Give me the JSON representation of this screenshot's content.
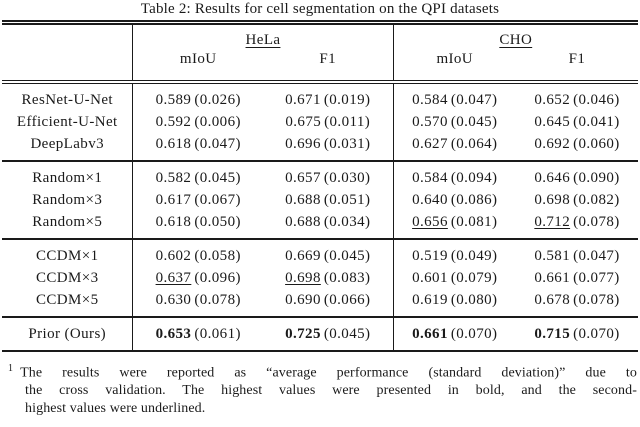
{
  "title": "Table 2: Results for cell segmentation on the QPI datasets",
  "colors": {
    "background": "#ffffff",
    "text": "#1a1a1a",
    "rule": "#1a1a1a"
  },
  "table": {
    "groups": [
      {
        "label": "HeLa",
        "metrics": [
          "mIoU",
          "F1"
        ]
      },
      {
        "label": "CHO",
        "metrics": [
          "mIoU",
          "F1"
        ]
      }
    ],
    "sections": [
      {
        "name": "baselines",
        "rows": [
          {
            "label": "ResNet-U-Net",
            "cells": [
              {
                "mean": "0.589",
                "std": "(0.026)",
                "style": "plain"
              },
              {
                "mean": "0.671",
                "std": "(0.019)",
                "style": "plain"
              },
              {
                "mean": "0.584",
                "std": "(0.047)",
                "style": "plain"
              },
              {
                "mean": "0.652",
                "std": "(0.046)",
                "style": "plain"
              }
            ]
          },
          {
            "label": "Efficient-U-Net",
            "cells": [
              {
                "mean": "0.592",
                "std": "(0.006)",
                "style": "plain"
              },
              {
                "mean": "0.675",
                "std": "(0.011)",
                "style": "plain"
              },
              {
                "mean": "0.570",
                "std": "(0.045)",
                "style": "plain"
              },
              {
                "mean": "0.645",
                "std": "(0.041)",
                "style": "plain"
              }
            ]
          },
          {
            "label": "DeepLabv3",
            "cells": [
              {
                "mean": "0.618",
                "std": "(0.047)",
                "style": "plain"
              },
              {
                "mean": "0.696",
                "std": "(0.031)",
                "style": "plain"
              },
              {
                "mean": "0.627",
                "std": "(0.064)",
                "style": "plain"
              },
              {
                "mean": "0.692",
                "std": "(0.060)",
                "style": "plain"
              }
            ]
          }
        ]
      },
      {
        "name": "random",
        "rows": [
          {
            "label": "Random×1",
            "cells": [
              {
                "mean": "0.582",
                "std": "(0.045)",
                "style": "plain"
              },
              {
                "mean": "0.657",
                "std": "(0.030)",
                "style": "plain"
              },
              {
                "mean": "0.584",
                "std": "(0.094)",
                "style": "plain"
              },
              {
                "mean": "0.646",
                "std": "(0.090)",
                "style": "plain"
              }
            ]
          },
          {
            "label": "Random×3",
            "cells": [
              {
                "mean": "0.617",
                "std": "(0.067)",
                "style": "plain"
              },
              {
                "mean": "0.688",
                "std": "(0.051)",
                "style": "plain"
              },
              {
                "mean": "0.640",
                "std": "(0.086)",
                "style": "plain"
              },
              {
                "mean": "0.698",
                "std": "(0.082)",
                "style": "plain"
              }
            ]
          },
          {
            "label": "Random×5",
            "cells": [
              {
                "mean": "0.618",
                "std": "(0.050)",
                "style": "plain"
              },
              {
                "mean": "0.688",
                "std": "(0.034)",
                "style": "plain"
              },
              {
                "mean": "0.656",
                "std": "(0.081)",
                "style": "underline"
              },
              {
                "mean": "0.712",
                "std": "(0.078)",
                "style": "underline"
              }
            ]
          }
        ]
      },
      {
        "name": "ccdm",
        "rows": [
          {
            "label": "CCDM×1",
            "cells": [
              {
                "mean": "0.602",
                "std": "(0.058)",
                "style": "plain"
              },
              {
                "mean": "0.669",
                "std": "(0.045)",
                "style": "plain"
              },
              {
                "mean": "0.519",
                "std": "(0.049)",
                "style": "plain"
              },
              {
                "mean": "0.581",
                "std": "(0.047)",
                "style": "plain"
              }
            ]
          },
          {
            "label": "CCDM×3",
            "cells": [
              {
                "mean": "0.637",
                "std": "(0.096)",
                "style": "underline"
              },
              {
                "mean": "0.698",
                "std": "(0.083)",
                "style": "underline"
              },
              {
                "mean": "0.601",
                "std": "(0.079)",
                "style": "plain"
              },
              {
                "mean": "0.661",
                "std": "(0.077)",
                "style": "plain"
              }
            ]
          },
          {
            "label": "CCDM×5",
            "cells": [
              {
                "mean": "0.630",
                "std": "(0.078)",
                "style": "plain"
              },
              {
                "mean": "0.690",
                "std": "(0.066)",
                "style": "plain"
              },
              {
                "mean": "0.619",
                "std": "(0.080)",
                "style": "plain"
              },
              {
                "mean": "0.678",
                "std": "(0.078)",
                "style": "plain"
              }
            ]
          }
        ]
      },
      {
        "name": "ours",
        "rows": [
          {
            "label": "Prior (Ours)",
            "cells": [
              {
                "mean": "0.653",
                "std": "(0.061)",
                "style": "bold"
              },
              {
                "mean": "0.725",
                "std": "(0.045)",
                "style": "bold"
              },
              {
                "mean": "0.661",
                "std": "(0.070)",
                "style": "bold"
              },
              {
                "mean": "0.715",
                "std": "(0.070)",
                "style": "bold"
              }
            ]
          }
        ]
      }
    ]
  },
  "footnote": {
    "marker": "1",
    "lines": [
      "The results were reported as “average performance (standard deviation)” due to",
      "the cross validation. The highest values were presented in bold, and the second-",
      "highest values were underlined."
    ]
  }
}
